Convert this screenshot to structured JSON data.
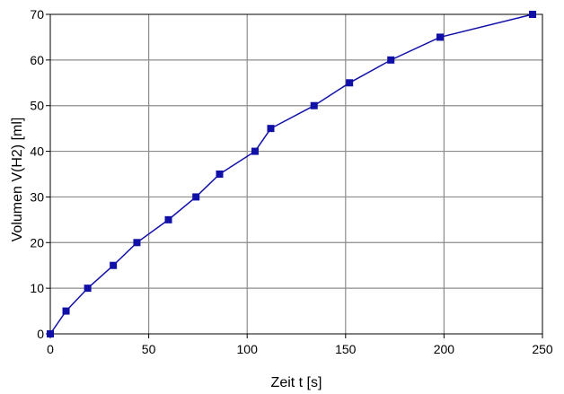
{
  "chart_data": {
    "type": "line",
    "title": "",
    "xlabel": "Zeit t [s]",
    "ylabel": "Volumen V(H2) [ml]",
    "xlim": [
      0,
      250
    ],
    "ylim": [
      0,
      70
    ],
    "x_ticks": [
      0,
      50,
      100,
      150,
      200,
      250
    ],
    "y_ticks": [
      0,
      10,
      20,
      30,
      40,
      50,
      60,
      70
    ],
    "grid": true,
    "legend": "none",
    "series": [
      {
        "color": "#1010a8",
        "marker": "square",
        "points": [
          {
            "x": 0,
            "y": 0
          },
          {
            "x": 8,
            "y": 5
          },
          {
            "x": 19,
            "y": 10
          },
          {
            "x": 32,
            "y": 15
          },
          {
            "x": 44,
            "y": 20
          },
          {
            "x": 60,
            "y": 25
          },
          {
            "x": 74,
            "y": 30
          },
          {
            "x": 86,
            "y": 35
          },
          {
            "x": 104,
            "y": 40
          },
          {
            "x": 112,
            "y": 45
          },
          {
            "x": 134,
            "y": 50
          },
          {
            "x": 152,
            "y": 55
          },
          {
            "x": 173,
            "y": 60
          },
          {
            "x": 198,
            "y": 65
          },
          {
            "x": 245,
            "y": 70
          }
        ]
      }
    ]
  }
}
